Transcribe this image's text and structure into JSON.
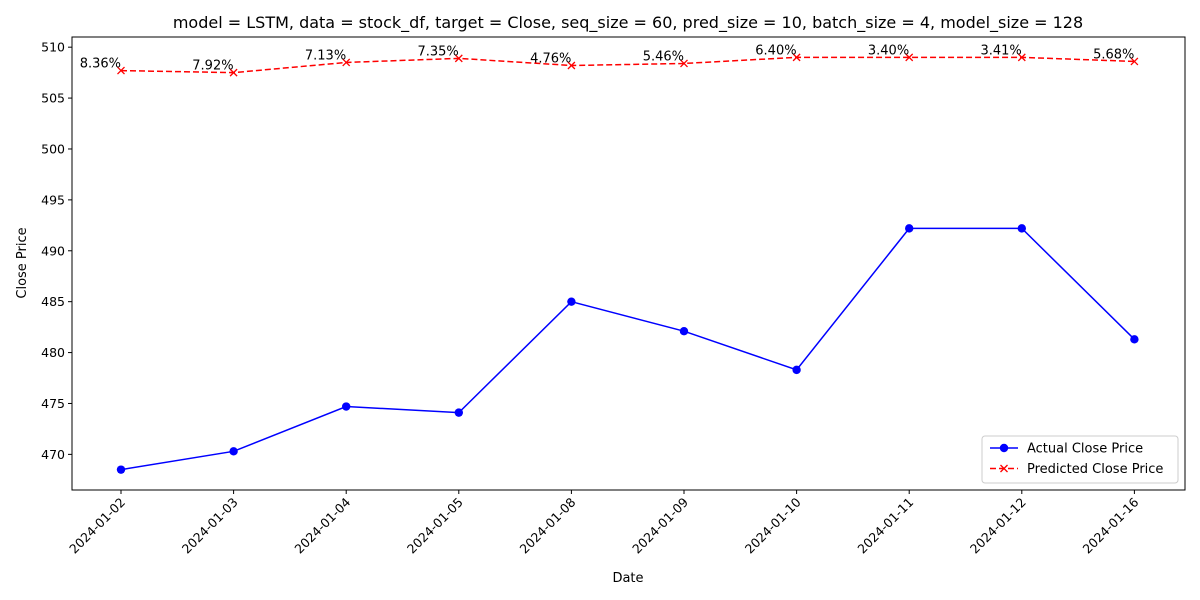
{
  "chart_data": {
    "type": "line",
    "title": "model = LSTM, data = stock_df, target = Close, seq_size = 60, pred_size = 10, batch_size = 4, model_size = 128",
    "xlabel": "Date",
    "ylabel": "Close Price",
    "ylim": [
      466.5,
      511.0
    ],
    "yticks": [
      470,
      475,
      480,
      485,
      490,
      495,
      500,
      505,
      510
    ],
    "grid": false,
    "legend_position": "bottom-right",
    "categories": [
      "2024-01-02",
      "2024-01-03",
      "2024-01-04",
      "2024-01-05",
      "2024-01-08",
      "2024-01-09",
      "2024-01-10",
      "2024-01-11",
      "2024-01-12",
      "2024-01-16"
    ],
    "series": [
      {
        "name": "Actual Close Price",
        "color": "#0000ff",
        "linestyle": "solid",
        "marker": "circle",
        "values": [
          468.5,
          470.3,
          474.7,
          474.1,
          485.0,
          482.1,
          478.3,
          492.2,
          492.2,
          481.3
        ]
      },
      {
        "name": "Predicted Close Price",
        "color": "#ff0000",
        "linestyle": "dashed",
        "marker": "x",
        "values": [
          507.7,
          507.5,
          508.5,
          508.9,
          508.2,
          508.4,
          509.0,
          509.0,
          509.0,
          508.6
        ],
        "labels": [
          "8.36%",
          "7.92%",
          "7.13%",
          "7.35%",
          "4.76%",
          "5.46%",
          "6.40%",
          "3.40%",
          "3.41%",
          "5.68%"
        ]
      }
    ]
  }
}
